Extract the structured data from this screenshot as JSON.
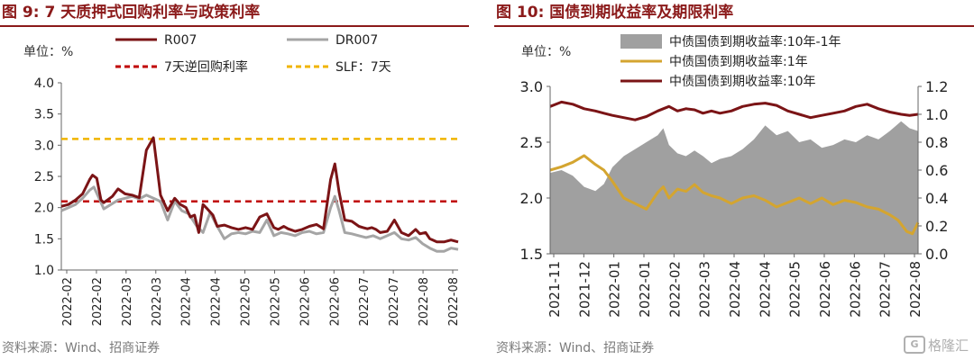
{
  "figures": [
    {
      "title": "图 9: 7 天质押式回购利率与政策利率",
      "source": "资料来源：Wind、招商证券",
      "chart_data": {
        "type": "line",
        "title": "",
        "unit_label": "单位：%",
        "xlabel": "",
        "ylabel": "",
        "ylim": [
          1.0,
          4.0
        ],
        "yticks": [
          "1.0",
          "1.5",
          "2.0",
          "2.5",
          "3.0",
          "3.5",
          "4.0"
        ],
        "xlim": [
          0,
          28
        ],
        "xtick_labels": [
          "2022-02",
          "2022-02",
          "2022-03",
          "2022-03",
          "2022-04",
          "2022-04",
          "2022-05",
          "2022-05",
          "2022-06",
          "2022-06",
          "2022-07",
          "2022-07",
          "2022-08",
          "2022-08"
        ],
        "legend_position": "top",
        "series": [
          {
            "name": "R007",
            "color": "#7b1416",
            "style": "solid",
            "x": [
              0,
              0.5,
              1,
              1.5,
              2,
              2.2,
              2.5,
              2.8,
              3.0,
              3.3,
              3.6,
              4,
              4.5,
              5,
              5.5,
              6,
              6.5,
              7,
              7.5,
              8,
              8.4,
              8.8,
              9.1,
              9.4,
              9.7,
              10,
              10.3,
              10.7,
              11,
              11.5,
              12,
              12.5,
              13,
              13.5,
              14,
              14.5,
              15,
              15.3,
              15.7,
              16,
              16.5,
              17,
              17.5,
              18,
              18.5,
              19,
              19.3,
              19.6,
              20,
              20.5,
              21,
              21.3,
              21.6,
              21.9,
              22.2,
              22.5,
              23,
              23.5,
              24,
              24.5,
              25,
              25.3,
              25.7,
              26,
              26.5,
              27,
              27.5,
              28
            ],
            "values": [
              2.02,
              2.05,
              2.12,
              2.22,
              2.45,
              2.52,
              2.47,
              2.12,
              2.08,
              2.13,
              2.18,
              2.3,
              2.22,
              2.2,
              2.16,
              2.92,
              3.12,
              2.2,
              1.95,
              2.15,
              2.05,
              2.0,
              1.85,
              1.88,
              1.6,
              2.05,
              1.98,
              1.88,
              1.7,
              1.72,
              1.68,
              1.65,
              1.68,
              1.65,
              1.85,
              1.9,
              1.68,
              1.65,
              1.7,
              1.66,
              1.62,
              1.65,
              1.7,
              1.73,
              1.66,
              2.45,
              2.7,
              2.25,
              1.8,
              1.78,
              1.7,
              1.68,
              1.66,
              1.68,
              1.65,
              1.6,
              1.62,
              1.8,
              1.6,
              1.55,
              1.65,
              1.58,
              1.6,
              1.5,
              1.45,
              1.45,
              1.48,
              1.45
            ]
          },
          {
            "name": "DR007",
            "color": "#a5a5a5",
            "style": "solid",
            "x": [
              0,
              0.5,
              1,
              1.5,
              2,
              2.3,
              2.6,
              3,
              3.5,
              4,
              4.5,
              5,
              5.5,
              6,
              6.5,
              7,
              7.5,
              8,
              8.5,
              9,
              9.5,
              10,
              10.5,
              11,
              11.5,
              12,
              12.5,
              13,
              13.5,
              14,
              14.5,
              15,
              15.5,
              16,
              16.5,
              17,
              17.5,
              18,
              18.5,
              19,
              19.3,
              19.6,
              20,
              20.5,
              21,
              21.5,
              22,
              22.5,
              23,
              23.5,
              24,
              24.5,
              25,
              25.5,
              26,
              26.5,
              27,
              27.5,
              28
            ],
            "values": [
              1.95,
              2.0,
              2.05,
              2.15,
              2.28,
              2.33,
              2.18,
              1.98,
              2.05,
              2.12,
              2.15,
              2.18,
              2.14,
              2.2,
              2.15,
              2.1,
              1.8,
              2.1,
              1.95,
              1.9,
              1.72,
              1.6,
              1.92,
              1.7,
              1.5,
              1.58,
              1.6,
              1.58,
              1.62,
              1.6,
              1.8,
              1.55,
              1.6,
              1.58,
              1.55,
              1.6,
              1.62,
              1.58,
              1.6,
              2.0,
              2.18,
              1.95,
              1.6,
              1.58,
              1.55,
              1.52,
              1.55,
              1.5,
              1.55,
              1.6,
              1.5,
              1.48,
              1.52,
              1.42,
              1.35,
              1.3,
              1.3,
              1.35,
              1.33
            ]
          },
          {
            "name": "7天逆回购利率",
            "color": "#c00000",
            "style": "dashed",
            "x": [
              0,
              28
            ],
            "values": [
              2.1,
              2.1
            ]
          },
          {
            "name": "SLF：7天",
            "color": "#f0b400",
            "style": "dashed",
            "x": [
              0,
              28
            ],
            "values": [
              3.1,
              3.1
            ]
          }
        ]
      }
    },
    {
      "title": "图 10:  国债到期收益率及期限利率",
      "source": "资料来源：Wind、招商证券",
      "watermark": "格隆汇",
      "chart_data": {
        "type": "area",
        "title": "",
        "unit_label": "单位：%",
        "xlabel": "",
        "ylabel": "",
        "ylim_left": [
          1.5,
          3.0
        ],
        "yticks_left": [
          "1.5",
          "2.0",
          "2.5",
          "3.0"
        ],
        "ylim_right": [
          0.0,
          1.2
        ],
        "yticks_right": [
          "0.0",
          "0.2",
          "0.4",
          "0.6",
          "0.8",
          "1.0",
          "1.2"
        ],
        "xlim": [
          0,
          13
        ],
        "xtick_labels": [
          "2021-11",
          "2021-12",
          "2022-01",
          "2022-01",
          "2022-02",
          "2022-03",
          "2022-04",
          "2022-04",
          "2022-05",
          "2022-06",
          "2022-06",
          "2022-07",
          "2022-08"
        ],
        "legend_position": "top",
        "series": [
          {
            "name": "中债国债到期收益率:10年-1年",
            "color": "#a0a0a0",
            "kind": "area",
            "axis": "right",
            "x": [
              0,
              0.4,
              0.8,
              1.2,
              1.6,
              1.9,
              2.2,
              2.6,
              3.0,
              3.4,
              3.8,
              4.0,
              4.2,
              4.5,
              4.8,
              5.1,
              5.4,
              5.7,
              6.0,
              6.4,
              6.8,
              7.2,
              7.6,
              8.0,
              8.4,
              8.8,
              9.2,
              9.6,
              10.0,
              10.4,
              10.8,
              11.2,
              11.6,
              12.0,
              12.4,
              12.7,
              13.0
            ],
            "values": [
              0.58,
              0.6,
              0.56,
              0.48,
              0.45,
              0.5,
              0.62,
              0.7,
              0.75,
              0.8,
              0.85,
              0.9,
              0.78,
              0.72,
              0.7,
              0.74,
              0.7,
              0.65,
              0.68,
              0.7,
              0.75,
              0.82,
              0.92,
              0.85,
              0.88,
              0.8,
              0.82,
              0.76,
              0.78,
              0.82,
              0.8,
              0.85,
              0.82,
              0.88,
              0.95,
              0.9,
              0.88
            ]
          },
          {
            "name": "中债国债到期收益率:1年",
            "color": "#d4a530",
            "kind": "line",
            "axis": "left",
            "x": [
              0,
              0.4,
              0.8,
              1.2,
              1.6,
              1.9,
              2.2,
              2.6,
              3.0,
              3.4,
              3.8,
              4.0,
              4.2,
              4.5,
              4.8,
              5.1,
              5.4,
              5.7,
              6.0,
              6.4,
              6.8,
              7.2,
              7.6,
              8.0,
              8.4,
              8.8,
              9.2,
              9.6,
              10.0,
              10.4,
              10.8,
              11.2,
              11.6,
              12.0,
              12.3,
              12.6,
              12.8,
              13.0
            ],
            "values": [
              2.25,
              2.28,
              2.32,
              2.38,
              2.3,
              2.25,
              2.15,
              2.0,
              1.95,
              1.9,
              2.05,
              2.1,
              2.0,
              2.08,
              2.06,
              2.12,
              2.05,
              2.02,
              2.0,
              1.95,
              2.0,
              2.02,
              1.98,
              1.92,
              1.96,
              2.0,
              1.95,
              2.0,
              1.94,
              1.98,
              1.96,
              1.92,
              1.9,
              1.85,
              1.8,
              1.7,
              1.68,
              1.78
            ]
          },
          {
            "name": "中债国债到期收益率:10年",
            "color": "#7b1416",
            "kind": "line",
            "axis": "left",
            "x": [
              0,
              0.4,
              0.8,
              1.2,
              1.6,
              1.9,
              2.2,
              2.6,
              3.0,
              3.4,
              3.8,
              4.0,
              4.2,
              4.5,
              4.8,
              5.1,
              5.4,
              5.7,
              6.0,
              6.4,
              6.8,
              7.2,
              7.6,
              8.0,
              8.4,
              8.8,
              9.2,
              9.6,
              10.0,
              10.4,
              10.8,
              11.2,
              11.6,
              12.0,
              12.4,
              12.7,
              13.0
            ],
            "values": [
              2.82,
              2.86,
              2.84,
              2.8,
              2.78,
              2.76,
              2.74,
              2.72,
              2.7,
              2.73,
              2.78,
              2.8,
              2.82,
              2.78,
              2.8,
              2.79,
              2.76,
              2.78,
              2.76,
              2.78,
              2.82,
              2.84,
              2.85,
              2.83,
              2.78,
              2.75,
              2.72,
              2.74,
              2.76,
              2.78,
              2.82,
              2.84,
              2.8,
              2.77,
              2.75,
              2.74,
              2.75
            ]
          }
        ]
      }
    }
  ]
}
